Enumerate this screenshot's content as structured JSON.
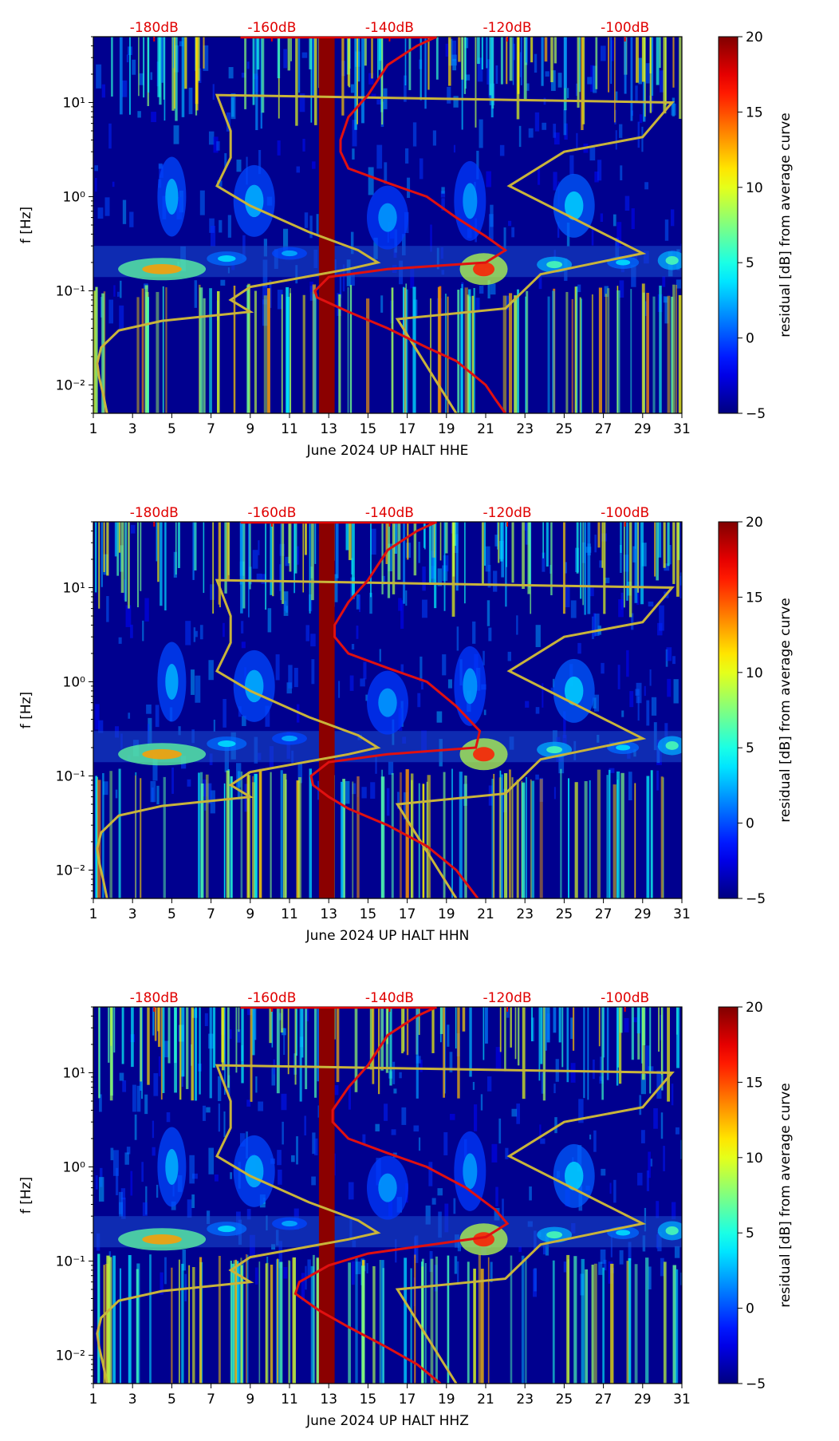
{
  "chart_data": [
    {
      "type": "heatmap",
      "title": "",
      "xlabel": "June 2024 UP HALT  HHE",
      "ylabel": "f [Hz]",
      "xlim": [
        1,
        31
      ],
      "ylim": [
        0.005,
        50
      ],
      "x_ticks": [
        "1",
        "3",
        "5",
        "7",
        "9",
        "11",
        "13",
        "15",
        "17",
        "19",
        "21",
        "23",
        "25",
        "27",
        "29",
        "31"
      ],
      "y_ticks": [
        {
          "value": 0.01,
          "label": "10⁻²"
        },
        {
          "value": 0.1,
          "label": "10⁻¹"
        },
        {
          "value": 1,
          "label": "10⁰"
        },
        {
          "value": 10,
          "label": "10¹"
        }
      ],
      "top_axis": {
        "labels": [
          "-180dB",
          "-160dB",
          "-140dB",
          "-120dB",
          "-100dB"
        ],
        "day_positions": [
          4.1,
          10.1,
          16.1,
          22.1,
          28.1
        ],
        "color": "#e00000"
      },
      "colorbar": {
        "label": "residual [dB] from average curve",
        "range": [
          -5,
          20
        ],
        "ticks": [
          "−5",
          "0",
          "5",
          "10",
          "15",
          "20"
        ]
      },
      "curve_red_average_day": [
        [
          18.5,
          50
        ],
        [
          17.5,
          40
        ],
        [
          16,
          25
        ],
        [
          15,
          12
        ],
        [
          14,
          7
        ],
        [
          13.6,
          4
        ],
        [
          13.6,
          3
        ],
        [
          14,
          2
        ],
        [
          16,
          1.4
        ],
        [
          18,
          1
        ],
        [
          19.5,
          0.6
        ],
        [
          21,
          0.38
        ],
        [
          22,
          0.27
        ],
        [
          21,
          0.2
        ],
        [
          16,
          0.17
        ],
        [
          13,
          0.14
        ],
        [
          12.3,
          0.1
        ],
        [
          12.4,
          0.085
        ],
        [
          14,
          0.06
        ],
        [
          16,
          0.04
        ],
        [
          18,
          0.025
        ],
        [
          19.5,
          0.018
        ],
        [
          21,
          0.01
        ],
        [
          21.5,
          0.007
        ],
        [
          22,
          0.005
        ]
      ],
      "curve_yellow_model_day": [
        [
          1.7,
          0.005
        ],
        [
          1.5,
          0.008
        ],
        [
          1.3,
          0.012
        ],
        [
          1.2,
          0.017
        ],
        [
          1.4,
          0.025
        ],
        [
          2.3,
          0.038
        ],
        [
          4.5,
          0.048
        ],
        [
          9,
          0.06
        ],
        [
          8,
          0.08
        ],
        [
          9,
          0.11
        ],
        [
          14,
          0.17
        ],
        [
          15.5,
          0.2
        ],
        [
          14.5,
          0.27
        ],
        [
          12,
          0.42
        ],
        [
          9,
          0.8
        ],
        [
          7.3,
          1.3
        ],
        [
          8,
          2.6
        ],
        [
          8,
          5
        ],
        [
          7.3,
          12
        ],
        [
          30.5,
          10
        ],
        [
          29,
          4.3
        ],
        [
          25,
          3
        ],
        [
          22.2,
          1.3
        ],
        [
          29,
          0.25
        ],
        [
          23.8,
          0.15
        ],
        [
          22,
          0.065
        ],
        [
          16.5,
          0.05
        ],
        [
          19.5,
          0.005
        ]
      ],
      "vertical_bar_day_range": [
        12.5,
        13.3
      ]
    },
    {
      "type": "heatmap",
      "title": "",
      "xlabel": "June 2024 UP HALT  HHN",
      "ylabel": "f [Hz]",
      "xlim": [
        1,
        31
      ],
      "ylim": [
        0.005,
        50
      ],
      "x_ticks": [
        "1",
        "3",
        "5",
        "7",
        "9",
        "11",
        "13",
        "15",
        "17",
        "19",
        "21",
        "23",
        "25",
        "27",
        "29",
        "31"
      ],
      "y_ticks": [
        {
          "value": 0.01,
          "label": "10⁻²"
        },
        {
          "value": 0.1,
          "label": "10⁻¹"
        },
        {
          "value": 1,
          "label": "10⁰"
        },
        {
          "value": 10,
          "label": "10¹"
        }
      ],
      "top_axis": {
        "labels": [
          "-180dB",
          "-160dB",
          "-140dB",
          "-120dB",
          "-100dB"
        ],
        "day_positions": [
          4.1,
          10.1,
          16.1,
          22.1,
          28.1
        ],
        "color": "#e00000"
      },
      "colorbar": {
        "label": "residual [dB] from average curve",
        "range": [
          -5,
          20
        ],
        "ticks": [
          "−5",
          "0",
          "5",
          "10",
          "15",
          "20"
        ]
      },
      "curve_red_average_day": [
        [
          18.5,
          50
        ],
        [
          17.5,
          40
        ],
        [
          16,
          25
        ],
        [
          15,
          12
        ],
        [
          14,
          7
        ],
        [
          13.3,
          4
        ],
        [
          13.3,
          3
        ],
        [
          14,
          2
        ],
        [
          16,
          1.4
        ],
        [
          18,
          1
        ],
        [
          19.5,
          0.55
        ],
        [
          20.7,
          0.3
        ],
        [
          20.5,
          0.2
        ],
        [
          16,
          0.17
        ],
        [
          13,
          0.14
        ],
        [
          12.1,
          0.1
        ],
        [
          12.2,
          0.08
        ],
        [
          13,
          0.06
        ],
        [
          14,
          0.045
        ],
        [
          16,
          0.03
        ],
        [
          18,
          0.018
        ],
        [
          19.5,
          0.01
        ],
        [
          20.6,
          0.005
        ]
      ],
      "curve_yellow_model_day": [
        [
          1.7,
          0.005
        ],
        [
          1.5,
          0.008
        ],
        [
          1.3,
          0.012
        ],
        [
          1.2,
          0.017
        ],
        [
          1.4,
          0.025
        ],
        [
          2.3,
          0.038
        ],
        [
          4.5,
          0.048
        ],
        [
          9,
          0.06
        ],
        [
          8,
          0.08
        ],
        [
          9,
          0.11
        ],
        [
          14,
          0.17
        ],
        [
          15.5,
          0.2
        ],
        [
          14.5,
          0.27
        ],
        [
          12,
          0.42
        ],
        [
          9,
          0.8
        ],
        [
          7.3,
          1.3
        ],
        [
          8,
          2.6
        ],
        [
          8,
          5
        ],
        [
          7.3,
          12
        ],
        [
          30.5,
          10
        ],
        [
          29,
          4.3
        ],
        [
          25,
          3
        ],
        [
          22.2,
          1.3
        ],
        [
          29,
          0.25
        ],
        [
          23.8,
          0.15
        ],
        [
          22,
          0.065
        ],
        [
          16.5,
          0.05
        ],
        [
          19.5,
          0.005
        ]
      ],
      "vertical_bar_day_range": [
        12.5,
        13.3
      ]
    },
    {
      "type": "heatmap",
      "title": "",
      "xlabel": "June 2024 UP HALT  HHZ",
      "ylabel": "f [Hz]",
      "xlim": [
        1,
        31
      ],
      "ylim": [
        0.005,
        50
      ],
      "x_ticks": [
        "1",
        "3",
        "5",
        "7",
        "9",
        "11",
        "13",
        "15",
        "17",
        "19",
        "21",
        "23",
        "25",
        "27",
        "29",
        "31"
      ],
      "y_ticks": [
        {
          "value": 0.01,
          "label": "10⁻²"
        },
        {
          "value": 0.1,
          "label": "10⁻¹"
        },
        {
          "value": 1,
          "label": "10⁰"
        },
        {
          "value": 10,
          "label": "10¹"
        }
      ],
      "top_axis": {
        "labels": [
          "-180dB",
          "-160dB",
          "-140dB",
          "-120dB",
          "-100dB"
        ],
        "day_positions": [
          4.1,
          10.1,
          16.1,
          22.1,
          28.1
        ],
        "color": "#e00000"
      },
      "colorbar": {
        "label": "residual [dB] from average curve",
        "range": [
          -5,
          20
        ],
        "ticks": [
          "−5",
          "0",
          "5",
          "10",
          "15",
          "20"
        ]
      },
      "curve_red_average_day": [
        [
          18.5,
          50
        ],
        [
          17.5,
          40
        ],
        [
          16,
          25
        ],
        [
          15,
          12
        ],
        [
          14,
          7
        ],
        [
          13.2,
          4
        ],
        [
          13.2,
          3
        ],
        [
          14,
          2
        ],
        [
          16,
          1.4
        ],
        [
          18,
          1
        ],
        [
          20,
          0.6
        ],
        [
          21.5,
          0.35
        ],
        [
          22.1,
          0.25
        ],
        [
          21,
          0.18
        ],
        [
          15,
          0.12
        ],
        [
          13,
          0.09
        ],
        [
          11.5,
          0.06
        ],
        [
          11.3,
          0.045
        ],
        [
          12.5,
          0.03
        ],
        [
          14,
          0.02
        ],
        [
          16,
          0.012
        ],
        [
          17.5,
          0.008
        ],
        [
          18.7,
          0.005
        ]
      ],
      "curve_yellow_model_day": [
        [
          1.7,
          0.005
        ],
        [
          1.5,
          0.008
        ],
        [
          1.3,
          0.012
        ],
        [
          1.2,
          0.017
        ],
        [
          1.4,
          0.025
        ],
        [
          2.3,
          0.038
        ],
        [
          4.5,
          0.048
        ],
        [
          9,
          0.06
        ],
        [
          8,
          0.08
        ],
        [
          9,
          0.11
        ],
        [
          14,
          0.17
        ],
        [
          15.5,
          0.2
        ],
        [
          14.5,
          0.27
        ],
        [
          12,
          0.42
        ],
        [
          9,
          0.8
        ],
        [
          7.3,
          1.3
        ],
        [
          8,
          2.6
        ],
        [
          8,
          5
        ],
        [
          7.3,
          12
        ],
        [
          30.5,
          10
        ],
        [
          29,
          4.3
        ],
        [
          25,
          3
        ],
        [
          22.2,
          1.3
        ],
        [
          29,
          0.25
        ],
        [
          23.8,
          0.15
        ],
        [
          22,
          0.065
        ],
        [
          16.5,
          0.05
        ],
        [
          19.5,
          0.005
        ]
      ],
      "vertical_bar_day_range": [
        12.5,
        13.3
      ]
    }
  ],
  "colors": {
    "red_curve": "#e01010",
    "yellow_curve": "#c9b43a",
    "top_label": "#e00000",
    "bar": "#8b0000"
  }
}
